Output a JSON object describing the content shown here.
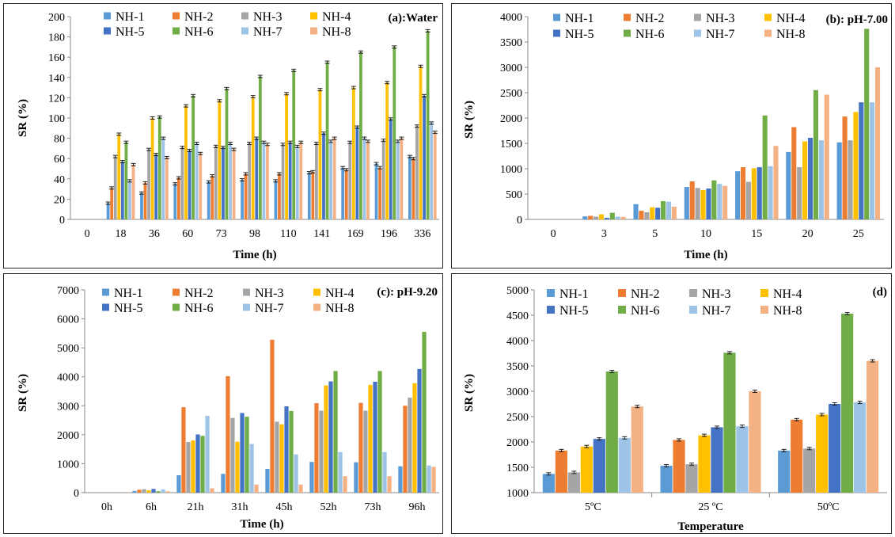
{
  "chart_data": [
    {
      "id": "a",
      "type": "bar",
      "tag": "(a):Water",
      "xlabel": "Time (h)",
      "ylabel": "SR (%)",
      "ylim": [
        0,
        200
      ],
      "yticks": [
        0,
        20,
        40,
        60,
        80,
        100,
        120,
        140,
        160,
        180,
        200
      ],
      "error_bars": true,
      "categories": [
        "0",
        "18",
        "36",
        "60",
        "73",
        "98",
        "110",
        "141",
        "169",
        "196",
        "336"
      ],
      "series": [
        {
          "name": "NH-1",
          "values": [
            0,
            16,
            26,
            35,
            37,
            39,
            38,
            46,
            51,
            55,
            62
          ]
        },
        {
          "name": "NH-2",
          "values": [
            0,
            31,
            36,
            41,
            43,
            45,
            45,
            47,
            49,
            51,
            60
          ]
        },
        {
          "name": "NH-3",
          "values": [
            0,
            62,
            69,
            71,
            72,
            75,
            74,
            75,
            76,
            78,
            92
          ]
        },
        {
          "name": "NH-4",
          "values": [
            0,
            84,
            100,
            112,
            117,
            121,
            124,
            128,
            130,
            135,
            151
          ]
        },
        {
          "name": "NH-5",
          "values": [
            0,
            57,
            64,
            68,
            71,
            80,
            76,
            85,
            91,
            99,
            122
          ]
        },
        {
          "name": "NH-6",
          "values": [
            0,
            76,
            101,
            122,
            129,
            141,
            147,
            155,
            165,
            170,
            186
          ]
        },
        {
          "name": "NH-7",
          "values": [
            0,
            38,
            80,
            75,
            75,
            76,
            72,
            77,
            80,
            77,
            95
          ]
        },
        {
          "name": "NH-8",
          "values": [
            0,
            54,
            61,
            65,
            69,
            74,
            76,
            80,
            77,
            80,
            86
          ]
        }
      ]
    },
    {
      "id": "b",
      "type": "bar",
      "tag": "(b): pH-7.00",
      "xlabel": "Time (h)",
      "ylabel": "SR (%)",
      "ylim": [
        0,
        4000
      ],
      "yticks": [
        0,
        500,
        1000,
        1500,
        2000,
        2500,
        3000,
        3500,
        4000
      ],
      "error_bars": false,
      "categories": [
        "0",
        "3",
        "5",
        "10",
        "15",
        "20",
        "25"
      ],
      "series": [
        {
          "name": "NH-1",
          "values": [
            0,
            60,
            300,
            640,
            950,
            1330,
            1520
          ]
        },
        {
          "name": "NH-2",
          "values": [
            0,
            70,
            170,
            750,
            1030,
            1820,
            2030
          ]
        },
        {
          "name": "NH-3",
          "values": [
            0,
            55,
            140,
            620,
            740,
            1030,
            1560
          ]
        },
        {
          "name": "NH-4",
          "values": [
            0,
            100,
            240,
            580,
            1010,
            1540,
            2120
          ]
        },
        {
          "name": "NH-5",
          "values": [
            0,
            30,
            230,
            610,
            1030,
            1610,
            2310
          ]
        },
        {
          "name": "NH-6",
          "values": [
            0,
            130,
            360,
            770,
            2050,
            2550,
            3760
          ]
        },
        {
          "name": "NH-7",
          "values": [
            0,
            55,
            350,
            700,
            1050,
            1560,
            2310
          ]
        },
        {
          "name": "NH-8",
          "values": [
            0,
            50,
            250,
            660,
            1450,
            2460,
            3000
          ]
        }
      ]
    },
    {
      "id": "c",
      "type": "bar",
      "tag": "(c): pH-9.20",
      "xlabel": "Time (h)",
      "ylabel": "SR (%)",
      "ylim": [
        0,
        7000
      ],
      "yticks": [
        0,
        1000,
        2000,
        3000,
        4000,
        5000,
        6000,
        7000
      ],
      "error_bars": false,
      "categories": [
        "0h",
        "6h",
        "21h",
        "31h",
        "45h",
        "52h",
        "73h",
        "96h"
      ],
      "series": [
        {
          "name": "NH-1",
          "values": [
            0,
            60,
            600,
            650,
            820,
            1060,
            1050,
            910
          ]
        },
        {
          "name": "NH-2",
          "values": [
            0,
            100,
            2950,
            4020,
            5280,
            3090,
            3100,
            3000
          ]
        },
        {
          "name": "NH-3",
          "values": [
            0,
            120,
            1750,
            2580,
            2450,
            2830,
            2830,
            3280
          ]
        },
        {
          "name": "NH-4",
          "values": [
            0,
            80,
            1800,
            1760,
            2360,
            3700,
            3720,
            3780
          ]
        },
        {
          "name": "NH-5",
          "values": [
            0,
            130,
            2010,
            2750,
            2980,
            3840,
            3830,
            4270
          ]
        },
        {
          "name": "NH-6",
          "values": [
            0,
            50,
            1960,
            2620,
            2820,
            4200,
            4200,
            5550
          ]
        },
        {
          "name": "NH-7",
          "values": [
            0,
            110,
            2650,
            1680,
            1320,
            1400,
            1400,
            940
          ]
        },
        {
          "name": "NH-8",
          "values": [
            0,
            50,
            150,
            280,
            280,
            570,
            570,
            890
          ]
        }
      ]
    },
    {
      "id": "d",
      "type": "bar",
      "tag": "(d)",
      "xlabel": "Temperature",
      "ylabel": "SR (%)",
      "ylim": [
        1000,
        5000
      ],
      "yticks": [
        1000,
        1500,
        2000,
        2500,
        3000,
        3500,
        4000,
        4500,
        5000
      ],
      "error_bars": true,
      "categories": [
        "5ºC",
        "25 ºC",
        "50ºC"
      ],
      "series": [
        {
          "name": "NH-1",
          "values": [
            1370,
            1530,
            1830
          ]
        },
        {
          "name": "NH-2",
          "values": [
            1830,
            2040,
            2440
          ]
        },
        {
          "name": "NH-3",
          "values": [
            1400,
            1560,
            1870
          ]
        },
        {
          "name": "NH-4",
          "values": [
            1910,
            2130,
            2540
          ]
        },
        {
          "name": "NH-5",
          "values": [
            2060,
            2290,
            2750
          ]
        },
        {
          "name": "NH-6",
          "values": [
            3390,
            3760,
            4530
          ]
        },
        {
          "name": "NH-7",
          "values": [
            2080,
            2310,
            2780
          ]
        },
        {
          "name": "NH-8",
          "values": [
            2700,
            3000,
            3600
          ]
        }
      ]
    }
  ],
  "series_colors": [
    "#5b9bd5",
    "#ed7d31",
    "#a5a5a5",
    "#ffc000",
    "#4472c4",
    "#70ad47",
    "#9dc3e6",
    "#f4b183"
  ]
}
